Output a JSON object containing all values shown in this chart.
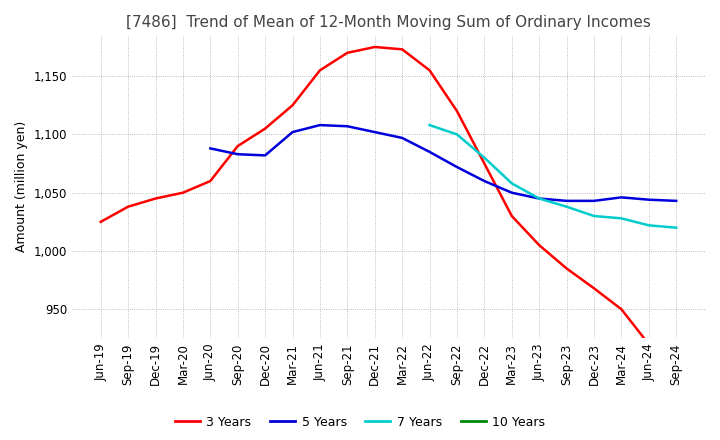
{
  "title": "[7486]  Trend of Mean of 12-Month Moving Sum of Ordinary Incomes",
  "ylabel": "Amount (million yen)",
  "ylim": [
    925,
    1185
  ],
  "yticks": [
    950,
    1000,
    1050,
    1100,
    1150
  ],
  "background_color": "#ffffff",
  "grid_color": "#aaaaaa",
  "x_labels": [
    "Jun-19",
    "Sep-19",
    "Dec-19",
    "Mar-20",
    "Jun-20",
    "Sep-20",
    "Dec-20",
    "Mar-21",
    "Jun-21",
    "Sep-21",
    "Dec-21",
    "Mar-22",
    "Jun-22",
    "Sep-22",
    "Dec-22",
    "Mar-23",
    "Jun-23",
    "Sep-23",
    "Dec-23",
    "Mar-24",
    "Jun-24",
    "Sep-24"
  ],
  "series": [
    {
      "name": "3 Years",
      "color": "#ff0000",
      "values": [
        1025,
        1038,
        1045,
        1050,
        1060,
        1090,
        1105,
        1125,
        1155,
        1170,
        1175,
        1173,
        1155,
        1120,
        1075,
        1030,
        1005,
        985,
        968,
        950,
        920,
        null
      ]
    },
    {
      "name": "5 Years",
      "color": "#0000dd",
      "values": [
        null,
        null,
        null,
        null,
        1088,
        1083,
        1082,
        1102,
        1108,
        1107,
        1102,
        1097,
        1085,
        1072,
        1060,
        1050,
        1045,
        1043,
        1043,
        1046,
        1044,
        1043
      ]
    },
    {
      "name": "7 Years",
      "color": "#00cccc",
      "values": [
        null,
        null,
        null,
        null,
        null,
        null,
        null,
        null,
        null,
        null,
        null,
        null,
        1108,
        1100,
        1080,
        1058,
        1045,
        1038,
        1030,
        1028,
        1022,
        1020
      ]
    },
    {
      "name": "10 Years",
      "color": "#008800",
      "values": [
        null,
        null,
        null,
        null,
        null,
        null,
        null,
        null,
        null,
        null,
        null,
        null,
        null,
        null,
        null,
        null,
        null,
        null,
        null,
        null,
        null,
        null
      ]
    }
  ],
  "legend_colors": [
    "#ff0000",
    "#0000dd",
    "#00cccc",
    "#008800"
  ],
  "legend_labels": [
    "3 Years",
    "5 Years",
    "7 Years",
    "10 Years"
  ],
  "title_fontsize": 11,
  "label_fontsize": 9,
  "tick_fontsize": 8.5
}
